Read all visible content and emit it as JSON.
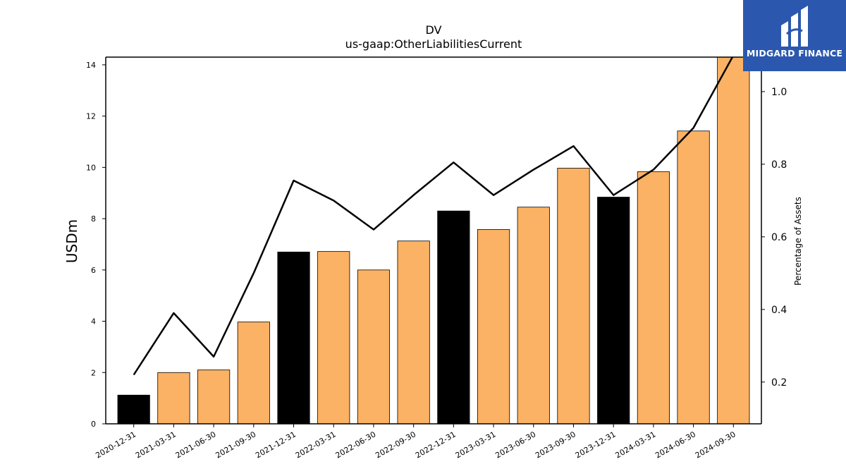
{
  "logo": {
    "text": "MIDGARD FINANCE"
  },
  "colors": {
    "bar_q4": "#000000",
    "bar_other": "#fbb264",
    "line": "#000000",
    "logo_bg": "#2b58ae"
  },
  "chart_data": {
    "type": "bar",
    "title": "DV",
    "subtitle": "us-gaap:OtherLiabilitiesCurrent",
    "ylabel": "USDm",
    "y2label": "Percentage of Assets",
    "categories": [
      "2020-12-31",
      "2021-03-31",
      "2021-06-30",
      "2021-09-30",
      "2021-12-31",
      "2022-03-31",
      "2022-06-30",
      "2022-09-30",
      "2022-12-31",
      "2023-03-31",
      "2023-06-30",
      "2023-09-30",
      "2023-12-31",
      "2024-03-31",
      "2024-06-30",
      "2024-09-30"
    ],
    "ylim": [
      0,
      14.3
    ],
    "y2lim": [
      0.085,
      1.095
    ],
    "yticks": [
      0,
      2,
      4,
      6,
      8,
      10,
      12,
      14
    ],
    "y2ticks": [
      0.2,
      0.4,
      0.6,
      0.8,
      1.0
    ],
    "series": [
      {
        "type": "bar",
        "axis": "left",
        "values": [
          1.12,
          2.0,
          2.1,
          3.97,
          6.7,
          6.72,
          6.0,
          7.13,
          8.3,
          7.58,
          8.45,
          9.97,
          8.84,
          9.83,
          11.42,
          14.7
        ]
      },
      {
        "type": "line",
        "axis": "right",
        "values": [
          0.22,
          0.39,
          0.27,
          0.5,
          0.755,
          0.7,
          0.62,
          0.715,
          0.805,
          0.715,
          0.785,
          0.85,
          0.715,
          0.785,
          0.9,
          1.1
        ]
      }
    ],
    "grid": false,
    "legend": "none"
  }
}
